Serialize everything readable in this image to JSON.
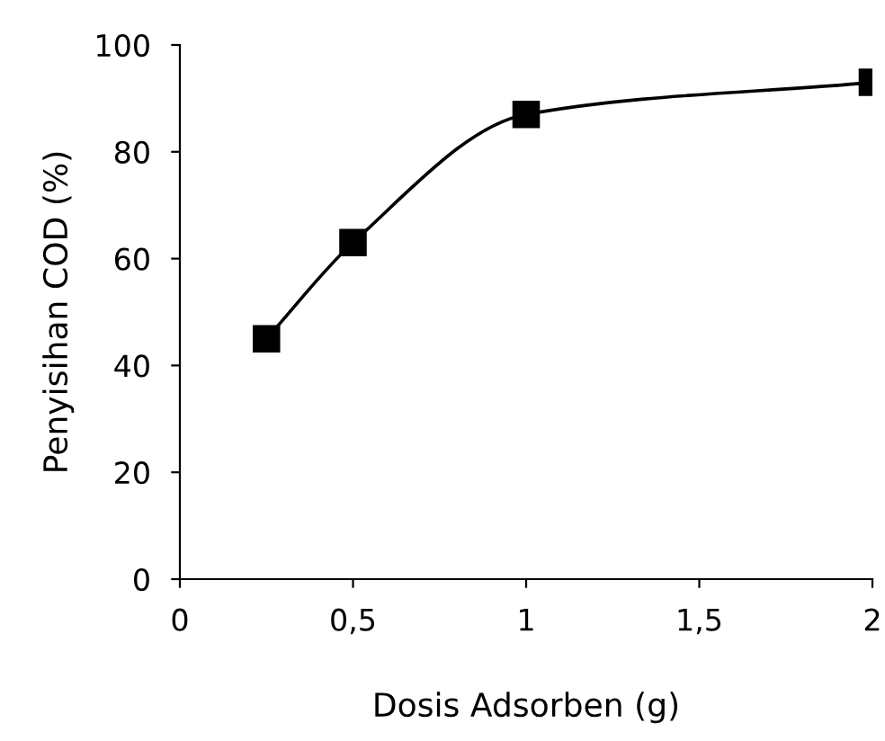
{
  "chart_data": {
    "type": "line",
    "xlabel": "Dosis Adsorben (g)",
    "ylabel": "Penyisihan COD (%)",
    "x": [
      0.25,
      0.5,
      1,
      2
    ],
    "series": [
      {
        "color": "#000000",
        "values": [
          45,
          63,
          87,
          93
        ]
      }
    ],
    "xlim": [
      0,
      2
    ],
    "xticks": [
      0,
      {
        "value": 0.5,
        "label": "0,5"
      },
      1,
      {
        "value": 1.5,
        "label": "1,5"
      },
      2
    ],
    "ylim": [
      0,
      100
    ],
    "yticks": [
      0,
      20,
      40,
      60,
      80,
      100
    ],
    "grid": false,
    "marker": "square",
    "line_style": "solid"
  }
}
